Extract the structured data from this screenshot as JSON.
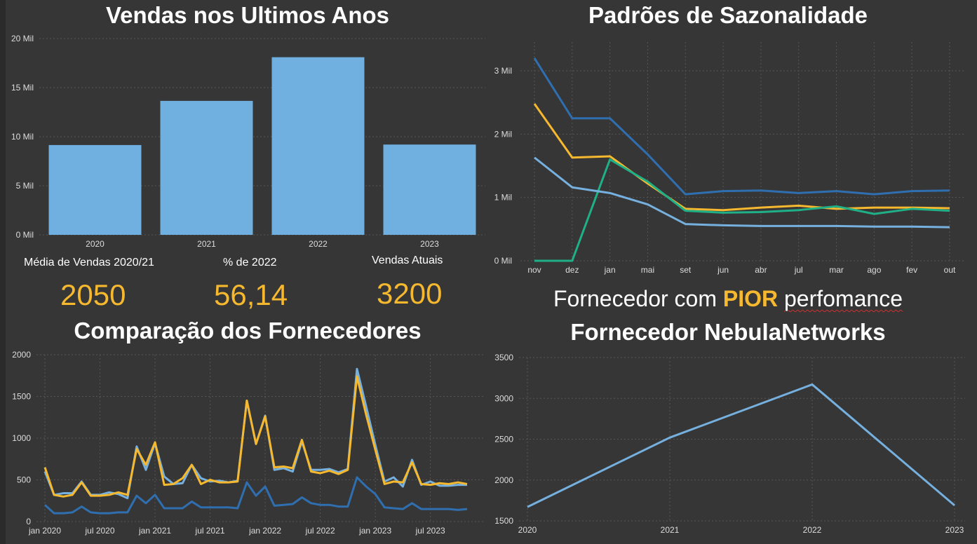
{
  "colors": {
    "background": "#363636",
    "bar": "#6fb0e0",
    "accent": "#f5b82e",
    "dark_blue": "#2f6fb0",
    "light_blue": "#76b0de",
    "green": "#1fb088",
    "grid": "#555555",
    "tick": "#dddddd"
  },
  "titles": {
    "sales": "Vendas nos Ultimos Anos",
    "seasonality": "Padrões de Sazonalidade",
    "comparison": "Comparação dos Fornecedores",
    "worst_prefix": "Fornecedor com ",
    "worst_highlight": "PIOR",
    "worst_suffix": "perfomance",
    "supplier": "Fornecedor NebulaNetworks"
  },
  "kpis": [
    {
      "label": "Média de Vendas 2020/21",
      "value": "2050"
    },
    {
      "label": "% de 2022",
      "value": "56,14"
    },
    {
      "label": "Vendas Atuais",
      "value": "3200"
    }
  ],
  "chart_data": [
    {
      "id": "sales",
      "type": "bar",
      "categories": [
        "2020",
        "2021",
        "2022",
        "2023"
      ],
      "values": [
        9150,
        13650,
        18100,
        9200
      ],
      "ylim": [
        0,
        20000
      ],
      "yticks": [
        0,
        5000,
        10000,
        15000,
        20000
      ],
      "ytick_labels": [
        "0 Mil",
        "5 Mil",
        "10 Mil",
        "15 Mil",
        "20 Mil"
      ],
      "grid": true
    },
    {
      "id": "seasonality",
      "type": "line",
      "categories": [
        "nov",
        "dez",
        "jan",
        "mai",
        "set",
        "jun",
        "abr",
        "jul",
        "mar",
        "ago",
        "fev",
        "out"
      ],
      "ylim": [
        0,
        3200
      ],
      "yticks": [
        0,
        1000,
        2000,
        3000
      ],
      "ytick_labels": [
        "0 Mil",
        "1 Mil",
        "2 Mil",
        "3 Mil"
      ],
      "grid": true,
      "series": [
        {
          "color": "#2f6fb0",
          "values": [
            3200,
            2250,
            2250,
            1680,
            1050,
            1100,
            1110,
            1070,
            1100,
            1050,
            1100,
            1110
          ]
        },
        {
          "color": "#f5b82e",
          "values": [
            2480,
            1630,
            1650,
            1220,
            820,
            800,
            840,
            870,
            820,
            840,
            840,
            830
          ]
        },
        {
          "color": "#1fb088",
          "values": [
            0,
            0,
            1600,
            1250,
            790,
            760,
            770,
            800,
            860,
            740,
            820,
            790
          ]
        },
        {
          "color": "#76b0de",
          "values": [
            1630,
            1160,
            1070,
            890,
            580,
            560,
            550,
            550,
            550,
            540,
            540,
            530
          ]
        }
      ]
    },
    {
      "id": "comparison",
      "type": "line",
      "x": [
        "jan 2020",
        "fev 2020",
        "mar 2020",
        "abr 2020",
        "mai 2020",
        "jun 2020",
        "jul 2020",
        "ago 2020",
        "set 2020",
        "out 2020",
        "nov 2020",
        "dez 2020",
        "jan 2021",
        "fev 2021",
        "mar 2021",
        "abr 2021",
        "mai 2021",
        "jun 2021",
        "jul 2021",
        "ago 2021",
        "set 2021",
        "out 2021",
        "nov 2021",
        "dez 2021",
        "jan 2022",
        "fev 2022",
        "mar 2022",
        "abr 2022",
        "mai 2022",
        "jun 2022",
        "jul 2022",
        "ago 2022",
        "set 2022",
        "out 2022",
        "nov 2022",
        "dez 2022",
        "jan 2023",
        "fev 2023",
        "mar 2023",
        "abr 2023",
        "mai 2023",
        "jun 2023",
        "jul 2023",
        "ago 2023",
        "set 2023",
        "out 2023",
        "nov 2023"
      ],
      "xticks": [
        "jan 2020",
        "jul 2020",
        "jan 2021",
        "jul 2021",
        "jan 2022",
        "jul 2022",
        "jan 2023",
        "jul 2023"
      ],
      "ylim": [
        0,
        2000
      ],
      "yticks": [
        0,
        500,
        1000,
        1500,
        2000
      ],
      "ytick_labels": [
        "0",
        "500",
        "1000",
        "1500",
        "2000"
      ],
      "grid": true,
      "series": [
        {
          "color": "#76b0de",
          "values": [
            600,
            320,
            340,
            340,
            480,
            320,
            320,
            350,
            330,
            280,
            900,
            620,
            940,
            540,
            450,
            460,
            680,
            520,
            480,
            490,
            470,
            490,
            1450,
            930,
            1270,
            620,
            640,
            600,
            960,
            620,
            620,
            630,
            590,
            630,
            1830,
            1380,
            920,
            480,
            530,
            420,
            740,
            440,
            480,
            430,
            430,
            440,
            440
          ]
        },
        {
          "color": "#f5b82e",
          "values": [
            650,
            320,
            300,
            320,
            470,
            310,
            310,
            320,
            350,
            320,
            870,
            680,
            950,
            440,
            450,
            520,
            680,
            450,
            500,
            470,
            470,
            480,
            1450,
            930,
            1260,
            650,
            660,
            640,
            980,
            600,
            580,
            610,
            570,
            620,
            1740,
            1280,
            860,
            450,
            480,
            470,
            710,
            450,
            440,
            460,
            450,
            470,
            450
          ]
        },
        {
          "color": "#2f6fb0",
          "values": [
            200,
            100,
            100,
            110,
            180,
            110,
            100,
            100,
            110,
            110,
            310,
            220,
            320,
            160,
            160,
            160,
            240,
            170,
            170,
            170,
            170,
            160,
            470,
            310,
            420,
            190,
            200,
            210,
            290,
            220,
            200,
            200,
            180,
            180,
            530,
            420,
            330,
            170,
            160,
            150,
            220,
            150,
            150,
            150,
            150,
            140,
            150
          ]
        }
      ]
    },
    {
      "id": "supplier",
      "type": "line",
      "categories": [
        "2020",
        "2021",
        "2022",
        "2023"
      ],
      "values": [
        1670,
        2520,
        3170,
        1690
      ],
      "ylim": [
        1500,
        3500
      ],
      "yticks": [
        1500,
        2000,
        2500,
        3000,
        3500
      ],
      "ytick_labels": [
        "1500",
        "2000",
        "2500",
        "3000",
        "3500"
      ],
      "grid": true
    }
  ]
}
